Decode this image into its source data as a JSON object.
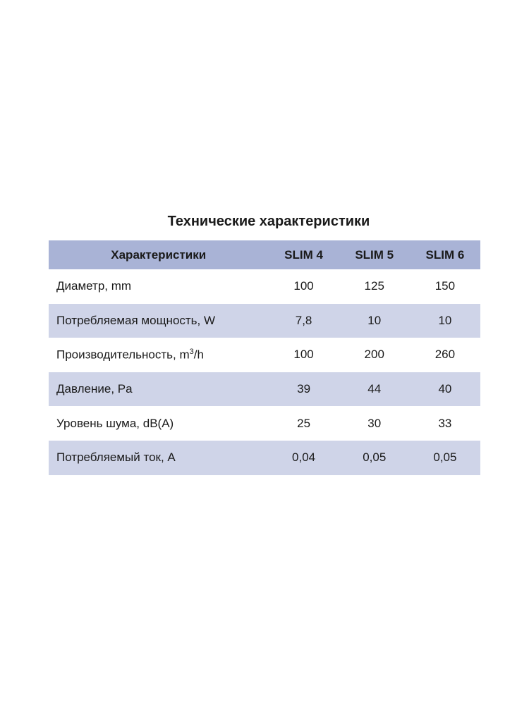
{
  "title": "Технические характеристики",
  "table": {
    "headers": [
      "Характеристики",
      "SLIM 4",
      "SLIM 5",
      "SLIM 6"
    ],
    "rows": [
      {
        "label": "Диаметр, mm",
        "values": [
          "100",
          "125",
          "150"
        ]
      },
      {
        "label": "Потребляемая мощность, W",
        "values": [
          "7,8",
          "10",
          "10"
        ]
      },
      {
        "label": "Производительность, m",
        "label_sup": "3",
        "label_suffix": "/h",
        "values": [
          "100",
          "200",
          "260"
        ]
      },
      {
        "label": "Давление, Pa",
        "values": [
          "39",
          "44",
          "40"
        ]
      },
      {
        "label": "Уровень шума, dB(A)",
        "values": [
          "25",
          "30",
          "33"
        ]
      },
      {
        "label": "Потребляемый ток, A",
        "values": [
          "0,04",
          "0,05",
          "0,05"
        ]
      }
    ]
  },
  "colors": {
    "header_bg": "#a9b3d6",
    "stripe_bg": "#cfd4e8"
  }
}
